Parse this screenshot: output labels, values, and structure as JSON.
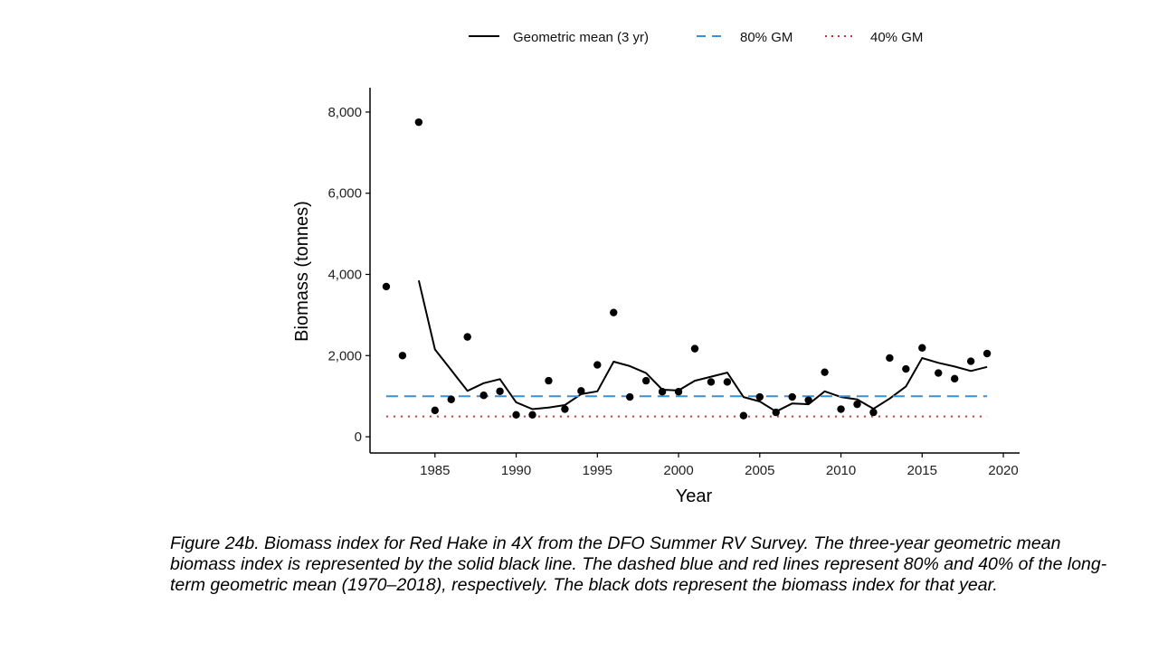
{
  "caption": "Figure 24b. Biomass index for Red Hake in 4X from the DFO Summer RV Survey. The three-year geometric mean biomass index is represented by the solid black line. The dashed blue and red lines represent 80% and 40% of the long-term geometric mean (1970–2018), respectively. The black dots represent the biomass index for that year.",
  "colors": {
    "points": "#000000",
    "gm_line": "#000000",
    "gm80": "#3a8fd6",
    "gm40": "#c8323c"
  },
  "chart_data": {
    "type": "scatter",
    "title": "",
    "xlabel": "Year",
    "ylabel": "Biomass (tonnes)",
    "xlim": [
      1981,
      2021
    ],
    "ylim": [
      -400,
      8600
    ],
    "x_ticks": [
      1985,
      1990,
      1995,
      2000,
      2005,
      2010,
      2015,
      2020
    ],
    "x_tick_labels": [
      "1985",
      "1990",
      "1995",
      "2000",
      "2005",
      "2010",
      "2015",
      "2020"
    ],
    "y_ticks": [
      0,
      2000,
      4000,
      6000,
      8000
    ],
    "y_tick_labels": [
      "0",
      "2,000",
      "4,000",
      "6,000",
      "8,000"
    ],
    "grid": false,
    "legend_position": "top",
    "legend": [
      "Geometric mean (3 yr)",
      "80% GM",
      "40% GM"
    ],
    "points": {
      "x": [
        1982,
        1983,
        1984,
        1985,
        1986,
        1987,
        1988,
        1989,
        1990,
        1991,
        1992,
        1993,
        1994,
        1995,
        1996,
        1997,
        1998,
        1999,
        2000,
        2001,
        2002,
        2003,
        2004,
        2005,
        2006,
        2007,
        2008,
        2009,
        2010,
        2011,
        2012,
        2013,
        2014,
        2015,
        2016,
        2017,
        2018,
        2019
      ],
      "y": [
        3700,
        2000,
        7750,
        650,
        920,
        2460,
        1020,
        1120,
        540,
        540,
        1380,
        680,
        1130,
        1770,
        3060,
        980,
        1380,
        1110,
        1110,
        2170,
        1350,
        1350,
        520,
        980,
        600,
        980,
        900,
        1590,
        680,
        800,
        600,
        1940,
        1670,
        2190,
        1570,
        1430,
        1860,
        2050
      ]
    },
    "series": [
      {
        "name": "Geometric mean (3 yr)",
        "style": "solid",
        "x": [
          1984,
          1985,
          1986,
          1987,
          1988,
          1989,
          1990,
          1991,
          1992,
          1993,
          1994,
          1995,
          1996,
          1997,
          1998,
          1999,
          2000,
          2001,
          2002,
          2003,
          2004,
          2005,
          2006,
          2007,
          2008,
          2009,
          2010,
          2011,
          2012,
          2013,
          2014,
          2015,
          2016,
          2017,
          2018,
          2019
        ],
        "y": [
          3850,
          2150,
          1640,
          1130,
          1320,
          1420,
          850,
          680,
          720,
          780,
          1050,
          1120,
          1850,
          1740,
          1570,
          1160,
          1140,
          1380,
          1480,
          1580,
          980,
          870,
          620,
          820,
          800,
          1120,
          980,
          920,
          690,
          940,
          1240,
          1940,
          1820,
          1730,
          1620,
          1720
        ]
      },
      {
        "name": "80% GM",
        "style": "dashed",
        "x": [
          1982,
          2019
        ],
        "y": [
          1000,
          1000
        ]
      },
      {
        "name": "40% GM",
        "style": "dotted",
        "x": [
          1982,
          2019
        ],
        "y": [
          500,
          500
        ]
      }
    ]
  }
}
